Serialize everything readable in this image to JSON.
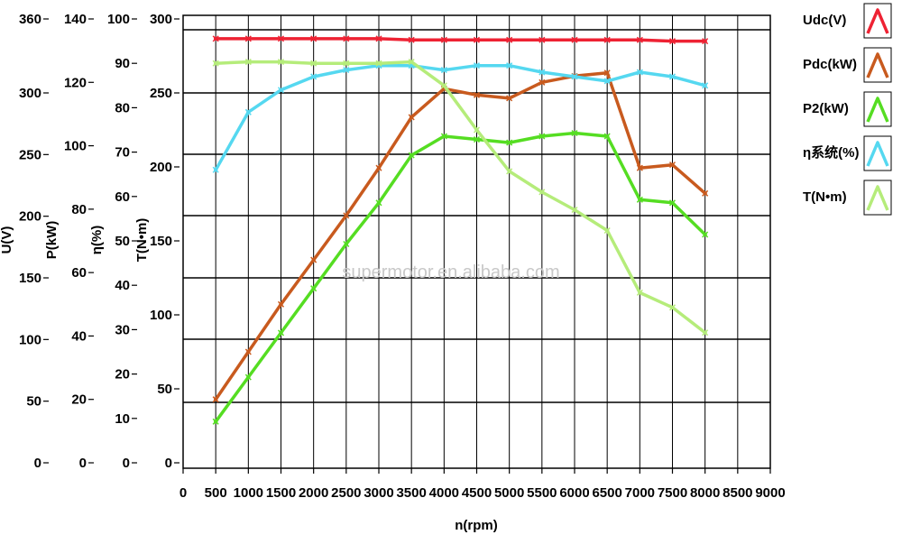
{
  "chart_data": {
    "type": "line",
    "x": [
      500,
      1000,
      1500,
      2000,
      2500,
      3000,
      3500,
      4000,
      4500,
      5000,
      5500,
      6000,
      6500,
      7000,
      7500,
      8000
    ],
    "x_axis": {
      "label": "n(rpm)",
      "range": [
        0,
        9000
      ],
      "ticks": [
        "0",
        "500",
        "1000",
        "1500",
        "2000",
        "2500",
        "3000",
        "3500",
        "4000",
        "4500",
        "5000",
        "5500",
        "6000",
        "6500",
        "7000",
        "7500",
        "8000",
        "8500",
        "9000"
      ]
    },
    "y_axes": [
      {
        "id": "U",
        "label": "U(V)",
        "range": [
          0,
          360
        ],
        "ticks": [
          "0",
          "50",
          "100",
          "150",
          "200",
          "250",
          "300",
          "360"
        ]
      },
      {
        "id": "P",
        "label": "P(kW)",
        "range": [
          0,
          140
        ],
        "ticks": [
          "0",
          "20",
          "40",
          "60",
          "80",
          "100",
          "120",
          "140"
        ]
      },
      {
        "id": "eta",
        "label": "η(%)",
        "range": [
          0,
          100
        ],
        "ticks": [
          "0",
          "10",
          "20",
          "30",
          "40",
          "50",
          "60",
          "70",
          "80",
          "90",
          "100"
        ]
      },
      {
        "id": "T",
        "label": "T(N•m)",
        "range": [
          0,
          300
        ],
        "ticks": [
          "0",
          "50",
          "100",
          "150",
          "200",
          "250",
          "300"
        ]
      }
    ],
    "series": [
      {
        "name": "Udc(V)",
        "axis": "U",
        "color": "#ee2233",
        "values": [
          344,
          344,
          344,
          344,
          344,
          344,
          343,
          343,
          343,
          343,
          343,
          343,
          343,
          343,
          342,
          342
        ]
      },
      {
        "name": "Pdc(kW)",
        "axis": "P",
        "color": "#c85a1e",
        "values": [
          20,
          35,
          50,
          64,
          78,
          93,
          109,
          118,
          116,
          115,
          120,
          122,
          123,
          93,
          94,
          85
        ]
      },
      {
        "name": "P2(kW)",
        "axis": "P",
        "color": "#55dd22",
        "values": [
          13,
          27,
          41,
          55,
          69,
          82,
          97,
          103,
          102,
          101,
          103,
          104,
          103,
          83,
          82,
          72
        ]
      },
      {
        "name": "η系统(%)",
        "axis": "eta",
        "color": "#55d8f0",
        "values": [
          66,
          79,
          84,
          87,
          88.5,
          89.5,
          89.5,
          88.5,
          89.5,
          89.5,
          88,
          87,
          86,
          88,
          87,
          85
        ]
      },
      {
        "name": "T(N•m)",
        "axis": "T",
        "color": "#b5ec7a",
        "values": [
          270,
          271,
          271,
          270,
          270,
          270,
          271,
          255,
          225,
          197,
          183,
          171,
          157,
          115,
          105,
          88
        ]
      }
    ],
    "legend_position": "right",
    "grid": "horizontal and vertical",
    "watermark": "supermotor.en.alibaba.com"
  }
}
